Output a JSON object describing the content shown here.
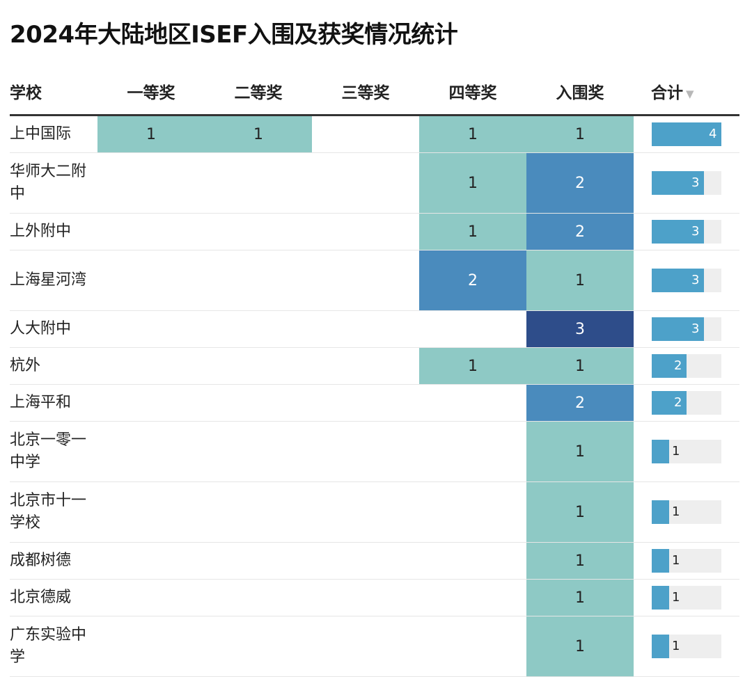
{
  "title": "2024年大陆地区ISEF入围及获奖情况统计",
  "sort_icon": "sort-descending-triangle-icon",
  "colors": {
    "level1": "#8ec9c5",
    "level2": "#4a8bbd",
    "level3": "#2e4d8a",
    "total_bar": "#4da1c9",
    "total_track": "#eeeeee"
  },
  "chart_data": {
    "type": "table",
    "columns": [
      "学校",
      "一等奖",
      "二等奖",
      "三等奖",
      "四等奖",
      "入围奖",
      "合计"
    ],
    "total_max": 4,
    "rows": [
      {
        "school": "上中国际",
        "values": [
          1,
          1,
          null,
          1,
          1
        ],
        "total": 4
      },
      {
        "school": "华师大二附中",
        "values": [
          null,
          null,
          null,
          1,
          2
        ],
        "total": 3
      },
      {
        "school": "上外附中",
        "values": [
          null,
          null,
          null,
          1,
          2
        ],
        "total": 3
      },
      {
        "school": "上海星河湾",
        "values": [
          null,
          null,
          null,
          2,
          1
        ],
        "total": 3
      },
      {
        "school": "人大附中",
        "values": [
          null,
          null,
          null,
          null,
          3
        ],
        "total": 3
      },
      {
        "school": "杭外",
        "values": [
          null,
          null,
          null,
          1,
          1
        ],
        "total": 2
      },
      {
        "school": "上海平和",
        "values": [
          null,
          null,
          null,
          null,
          2
        ],
        "total": 2
      },
      {
        "school": "北京一零一中学",
        "values": [
          null,
          null,
          null,
          null,
          1
        ],
        "total": 1
      },
      {
        "school": "北京市十一学校",
        "values": [
          null,
          null,
          null,
          null,
          1
        ],
        "total": 1
      },
      {
        "school": "成都树德",
        "values": [
          null,
          null,
          null,
          null,
          1
        ],
        "total": 1
      },
      {
        "school": "北京德威",
        "values": [
          null,
          null,
          null,
          null,
          1
        ],
        "total": 1
      },
      {
        "school": "广东实验中学",
        "values": [
          null,
          null,
          null,
          null,
          1
        ],
        "total": 1
      }
    ]
  }
}
